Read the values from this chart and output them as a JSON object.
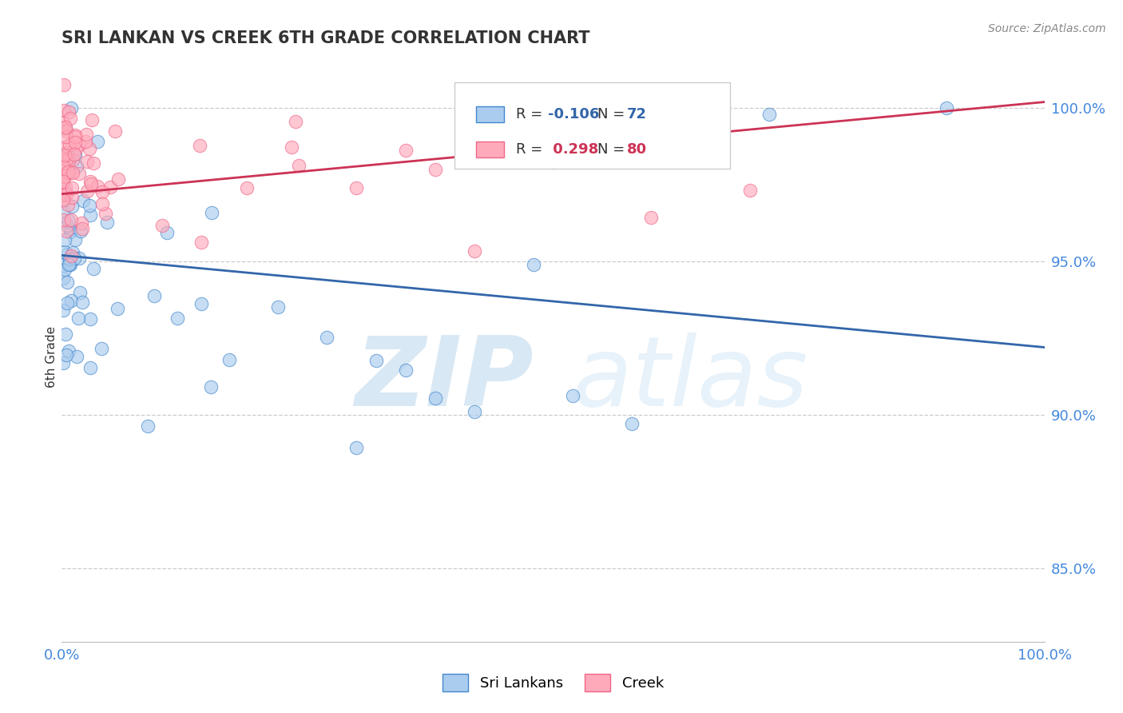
{
  "title": "SRI LANKAN VS CREEK 6TH GRADE CORRELATION CHART",
  "source_text": "Source: ZipAtlas.com",
  "ylabel": "6th Grade",
  "xlim": [
    0.0,
    1.0
  ],
  "ylim": [
    0.826,
    1.012
  ],
  "yticks": [
    0.85,
    0.9,
    0.95,
    1.0
  ],
  "ytick_labels": [
    "85.0%",
    "90.0%",
    "95.0%",
    "100.0%"
  ],
  "xtick_labels": [
    "0.0%",
    "100.0%"
  ],
  "blue_fill": "#aaccee",
  "blue_edge": "#4488cc",
  "pink_fill": "#ffaabb",
  "pink_edge": "#ee6688",
  "trend_blue_color": "#3366aa",
  "trend_pink_color": "#cc3355",
  "legend_R_blue": "-0.106",
  "legend_N_blue": "72",
  "legend_R_pink": "0.298",
  "legend_N_pink": "80",
  "legend_label_blue": "Sri Lankans",
  "legend_label_pink": "Creek",
  "watermark_zip": "ZIP",
  "watermark_atlas": "atlas",
  "blue_trend_start": 0.952,
  "blue_trend_end": 0.922,
  "pink_trend_start": 0.972,
  "pink_trend_end": 1.002
}
